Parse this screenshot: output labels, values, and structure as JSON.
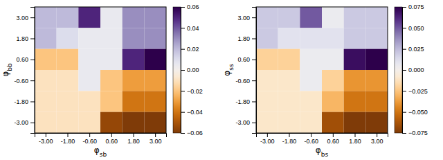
{
  "chart_data": [
    {
      "type": "heatmap",
      "x_label": "φsb",
      "y_label": "φbb",
      "x": [
        -3.0,
        -1.8,
        -0.6,
        0.6,
        1.8,
        3.0
      ],
      "y": [
        3.0,
        1.8,
        0.6,
        -0.6,
        -1.8,
        -3.0
      ],
      "values": [
        [
          0.02,
          0.02,
          0.05,
          0.005,
          0.03,
          0.03
        ],
        [
          0.02,
          0.01,
          0.005,
          0.005,
          0.03,
          0.03
        ],
        [
          -0.02,
          -0.02,
          0.005,
          0.005,
          0.05,
          0.065
        ],
        [
          -0.01,
          -0.01,
          0.005,
          -0.02,
          -0.03,
          -0.03
        ],
        [
          -0.01,
          -0.01,
          -0.01,
          -0.02,
          -0.04,
          -0.04
        ],
        [
          -0.01,
          -0.01,
          -0.01,
          -0.055,
          -0.06,
          -0.06
        ]
      ],
      "xlim": [
        -3.6,
        3.6
      ],
      "ylim": [
        -3.6,
        3.6
      ],
      "xticks": [
        {
          "value": -3.0,
          "label": "-3.00"
        },
        {
          "value": -1.8,
          "label": "-1.80"
        },
        {
          "value": -0.6,
          "label": "-0.60"
        },
        {
          "value": 0.6,
          "label": "0.60"
        },
        {
          "value": 1.8,
          "label": "1.80"
        },
        {
          "value": 3.0,
          "label": "3.00"
        }
      ],
      "yticks": [
        {
          "value": -3.0,
          "label": "-3.00"
        },
        {
          "value": -1.8,
          "label": "-1.80"
        },
        {
          "value": -0.6,
          "label": "-0.60"
        },
        {
          "value": 0.6,
          "label": "0.60"
        },
        {
          "value": 1.8,
          "label": "1.80"
        },
        {
          "value": 3.0,
          "label": "3.00"
        }
      ],
      "clim": [
        -0.06,
        0.06
      ],
      "cticks": [
        {
          "value": -0.06,
          "label": "−0.06"
        },
        {
          "value": -0.04,
          "label": "−0.04"
        },
        {
          "value": -0.02,
          "label": "−0.02"
        },
        {
          "value": 0.0,
          "label": "0.00"
        },
        {
          "value": 0.02,
          "label": "0.02"
        },
        {
          "value": 0.04,
          "label": "0.04"
        },
        {
          "value": 0.06,
          "label": "0.06"
        }
      ],
      "color": "PuOr_r"
    },
    {
      "type": "heatmap",
      "x_label": "φbs",
      "y_label": "φss",
      "x": [
        -3.0,
        -1.8,
        -0.6,
        0.6,
        1.8,
        3.0
      ],
      "y": [
        3.0,
        1.8,
        0.6,
        -0.6,
        -1.8,
        -3.0
      ],
      "values": [
        [
          0.02,
          0.02,
          0.05,
          0.005,
          0.02,
          0.02
        ],
        [
          0.02,
          0.01,
          0.01,
          0.01,
          0.02,
          0.02
        ],
        [
          -0.02,
          -0.02,
          0.005,
          0.005,
          0.07,
          0.075
        ],
        [
          -0.01,
          -0.01,
          0.005,
          -0.02,
          -0.04,
          -0.04
        ],
        [
          -0.01,
          -0.01,
          -0.01,
          -0.03,
          -0.05,
          -0.05
        ],
        [
          -0.01,
          -0.01,
          -0.01,
          -0.065,
          -0.075,
          -0.075
        ]
      ],
      "xlim": [
        -3.6,
        3.6
      ],
      "ylim": [
        -3.6,
        3.6
      ],
      "xticks": [
        {
          "value": -3.0,
          "label": "-3.00"
        },
        {
          "value": -1.8,
          "label": "-1.80"
        },
        {
          "value": -0.6,
          "label": "-0.60"
        },
        {
          "value": 0.6,
          "label": "0.60"
        },
        {
          "value": 1.8,
          "label": "1.80"
        },
        {
          "value": 3.0,
          "label": "3.00"
        }
      ],
      "yticks": [
        {
          "value": -3.0,
          "label": "-3.00"
        },
        {
          "value": -1.8,
          "label": "-1.80"
        },
        {
          "value": -0.6,
          "label": "-0.60"
        },
        {
          "value": 0.6,
          "label": "0.60"
        },
        {
          "value": 1.8,
          "label": "1.80"
        },
        {
          "value": 3.0,
          "label": "3.00"
        }
      ],
      "clim": [
        -0.075,
        0.075
      ],
      "cticks": [
        {
          "value": -0.075,
          "label": "−0.075"
        },
        {
          "value": -0.05,
          "label": "−0.050"
        },
        {
          "value": -0.025,
          "label": "−0.025"
        },
        {
          "value": 0.0,
          "label": "0.000"
        },
        {
          "value": 0.025,
          "label": "0.025"
        },
        {
          "value": 0.05,
          "label": "0.050"
        },
        {
          "value": 0.075,
          "label": "0.075"
        }
      ],
      "color": "PuOr_r"
    }
  ]
}
